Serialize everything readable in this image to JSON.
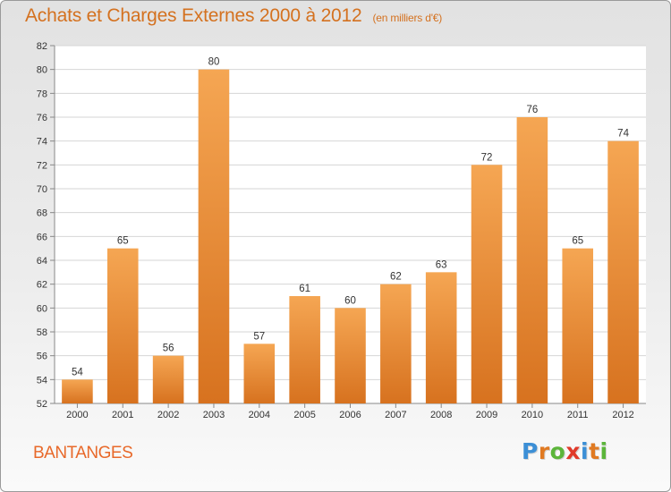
{
  "header": {
    "title": "Achats et Charges Externes 2000 à 2012",
    "unit": "(en milliers d'€)"
  },
  "footer": {
    "commune": "BANTANGES",
    "logo": {
      "letters": [
        "P",
        "r",
        "o",
        "x",
        "i",
        "t",
        "i"
      ],
      "colors": [
        "#3c8fd6",
        "#e07a22",
        "#5bb53a",
        "#e03a2a",
        "#3c8fd6",
        "#e07a22",
        "#5bb53a"
      ]
    }
  },
  "colors": {
    "bar_light": "#f5a653",
    "bar_dark": "#d7721f",
    "grid": "#d6d6d6",
    "axis": "#888888"
  },
  "chart_data": {
    "type": "bar",
    "title": "Achats et Charges Externes 2000 à 2012",
    "subtitle": "(en milliers d'€)",
    "categories": [
      "2000",
      "2001",
      "2002",
      "2003",
      "2004",
      "2005",
      "2006",
      "2007",
      "2008",
      "2009",
      "2010",
      "2011",
      "2012"
    ],
    "values": [
      54,
      65,
      56,
      80,
      57,
      61,
      60,
      62,
      63,
      72,
      76,
      65,
      74
    ],
    "ylim": [
      52,
      82
    ],
    "yticks": [
      52,
      54,
      56,
      58,
      60,
      62,
      64,
      66,
      68,
      70,
      72,
      74,
      76,
      78,
      80,
      82
    ],
    "grid": true,
    "data_labels": true
  }
}
